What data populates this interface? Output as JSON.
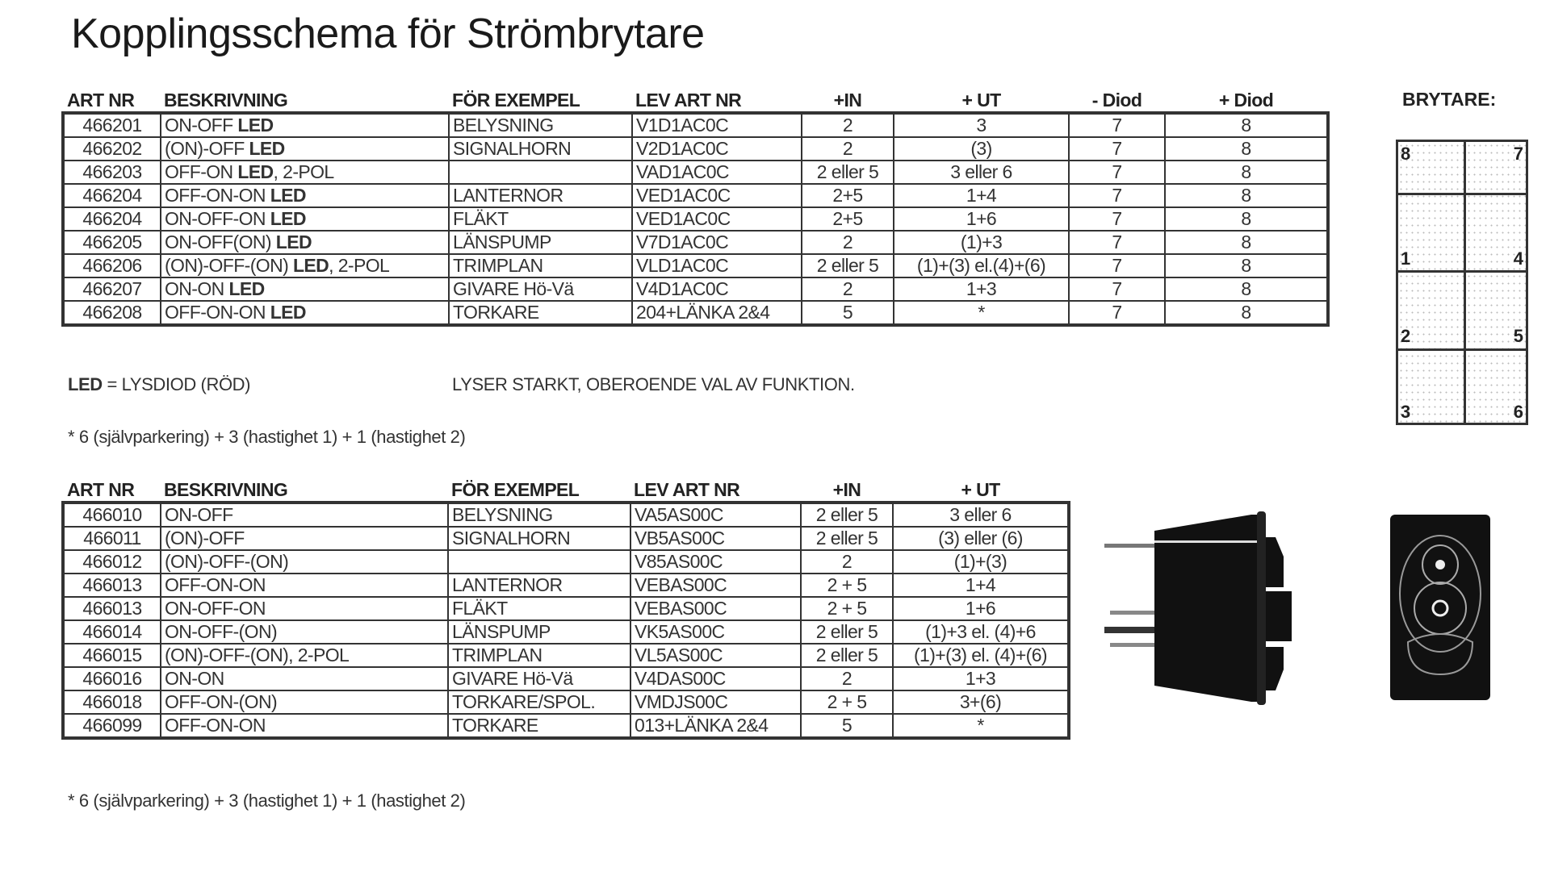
{
  "title": "Kopplingsschema för Strömbrytare",
  "table1": {
    "headers": [
      "ART NR",
      "BESKRIVNING",
      "FÖR EXEMPEL",
      "LEV ART NR",
      "+IN",
      "+ UT",
      "- Diod",
      "+ Diod"
    ],
    "rows": [
      {
        "art": "466201",
        "desc": "ON-OFF ",
        "bold": "LED",
        "suffix": "",
        "ex": "BELYSNING",
        "lev": "V1D1AC0C",
        "in": "2",
        "ut": "3",
        "minus": "7",
        "plus": "8"
      },
      {
        "art": "466202",
        "desc": "(ON)-OFF ",
        "bold": "LED",
        "suffix": "",
        "ex": "SIGNALHORN",
        "lev": "V2D1AC0C",
        "in": "2",
        "ut": "(3)",
        "minus": "7",
        "plus": "8"
      },
      {
        "art": "466203",
        "desc": "OFF-ON ",
        "bold": "LED",
        "suffix": ", 2-POL",
        "ex": "",
        "lev": "VAD1AC0C",
        "in": "2 eller 5",
        "ut": "3 eller 6",
        "minus": "7",
        "plus": "8"
      },
      {
        "art": "466204",
        "desc": "OFF-ON-ON ",
        "bold": "LED",
        "suffix": "",
        "ex": "LANTERNOR",
        "lev": "VED1AC0C",
        "in": "2+5",
        "ut": "1+4",
        "minus": "7",
        "plus": "8"
      },
      {
        "art": "466204",
        "desc": "ON-OFF-ON ",
        "bold": "LED",
        "suffix": "",
        "ex": "FLÄKT",
        "lev": "VED1AC0C",
        "in": "2+5",
        "ut": "1+6",
        "minus": "7",
        "plus": "8"
      },
      {
        "art": "466205",
        "desc": "ON-OFF(ON) ",
        "bold": "LED",
        "suffix": "",
        "ex": "LÄNSPUMP",
        "lev": "V7D1AC0C",
        "in": "2",
        "ut": "(1)+3",
        "minus": "7",
        "plus": "8"
      },
      {
        "art": "466206",
        "desc": "(ON)-OFF-(ON) ",
        "bold": "LED",
        "suffix": ", 2-POL",
        "ex": "TRIMPLAN",
        "lev": "VLD1AC0C",
        "in": "2 eller 5",
        "ut": "(1)+(3) el.(4)+(6)",
        "minus": "7",
        "plus": "8"
      },
      {
        "art": "466207",
        "desc": "ON-ON ",
        "bold": "LED",
        "suffix": "",
        "ex": "GIVARE Hö-Vä",
        "lev": "V4D1AC0C",
        "in": "2",
        "ut": "1+3",
        "minus": "7",
        "plus": "8"
      },
      {
        "art": "466208",
        "desc": "OFF-ON-ON ",
        "bold": "LED",
        "suffix": "",
        "ex": "TORKARE",
        "lev": "204+LÄNKA 2&4",
        "in": "5",
        "ut": "*",
        "minus": "7",
        "plus": "8"
      }
    ]
  },
  "led_note": {
    "bold": "LED",
    "text": " = LYSDIOD (RÖD)",
    "right": "LYSER STARKT, OBEROENDE VAL AV FUNKTION."
  },
  "footnote1": "* 6 (självparkering) + 3 (hastighet 1) + 1 (hastighet 2)",
  "table2": {
    "headers": [
      "ART NR",
      "BESKRIVNING",
      "FÖR EXEMPEL",
      "LEV ART NR",
      "+IN",
      "+ UT"
    ],
    "rows": [
      {
        "art": "466010",
        "desc": "ON-OFF",
        "ex": "BELYSNING",
        "lev": "VA5AS00C",
        "in": "2 eller 5",
        "ut": "3 eller 6"
      },
      {
        "art": "466011",
        "desc": "(ON)-OFF",
        "ex": "SIGNALHORN",
        "lev": "VB5AS00C",
        "in": "2 eller 5",
        "ut": "(3) eller (6)"
      },
      {
        "art": "466012",
        "desc": "(ON)-OFF-(ON)",
        "ex": "",
        "lev": "V85AS00C",
        "in": "2",
        "ut": "(1)+(3)"
      },
      {
        "art": "466013",
        "desc": "OFF-ON-ON",
        "ex": "LANTERNOR",
        "lev": "VEBAS00C",
        "in": "2 + 5",
        "ut": "1+4"
      },
      {
        "art": "466013",
        "desc": "ON-OFF-ON",
        "ex": "FLÄKT",
        "lev": "VEBAS00C",
        "in": "2 + 5",
        "ut": "1+6"
      },
      {
        "art": "466014",
        "desc": "ON-OFF-(ON)",
        "ex": "LÄNSPUMP",
        "lev": "VK5AS00C",
        "in": "2 eller 5",
        "ut": "(1)+3 el. (4)+6"
      },
      {
        "art": "466015",
        "desc": "(ON)-OFF-(ON), 2-POL",
        "ex": "TRIMPLAN",
        "lev": "VL5AS00C",
        "in": "2 eller 5",
        "ut": "(1)+(3) el. (4)+(6)"
      },
      {
        "art": "466016",
        "desc": "ON-ON",
        "ex": "GIVARE Hö-Vä",
        "lev": "V4DAS00C",
        "in": "2",
        "ut": "1+3"
      },
      {
        "art": "466018",
        "desc": "OFF-ON-(ON)",
        "ex": "TORKARE/SPOL.",
        "lev": "VMDJS00C",
        "in": "2 + 5",
        "ut": "3+(6)"
      },
      {
        "art": "466099",
        "desc": "OFF-ON-ON",
        "ex": "TORKARE",
        "lev": "013+LÄNKA 2&4",
        "in": "5",
        "ut": "*"
      }
    ]
  },
  "footnote2": "* 6 (självparkering) + 3 (hastighet 1) + 1 (hastighet 2)",
  "brytare": {
    "label": "BRYTARE:",
    "pins": [
      "8",
      "7",
      "1",
      "4",
      "2",
      "5",
      "3",
      "6"
    ]
  },
  "images": {
    "side_view": "rocker-switch-side-view",
    "front_view": "rocker-switch-front-view"
  }
}
